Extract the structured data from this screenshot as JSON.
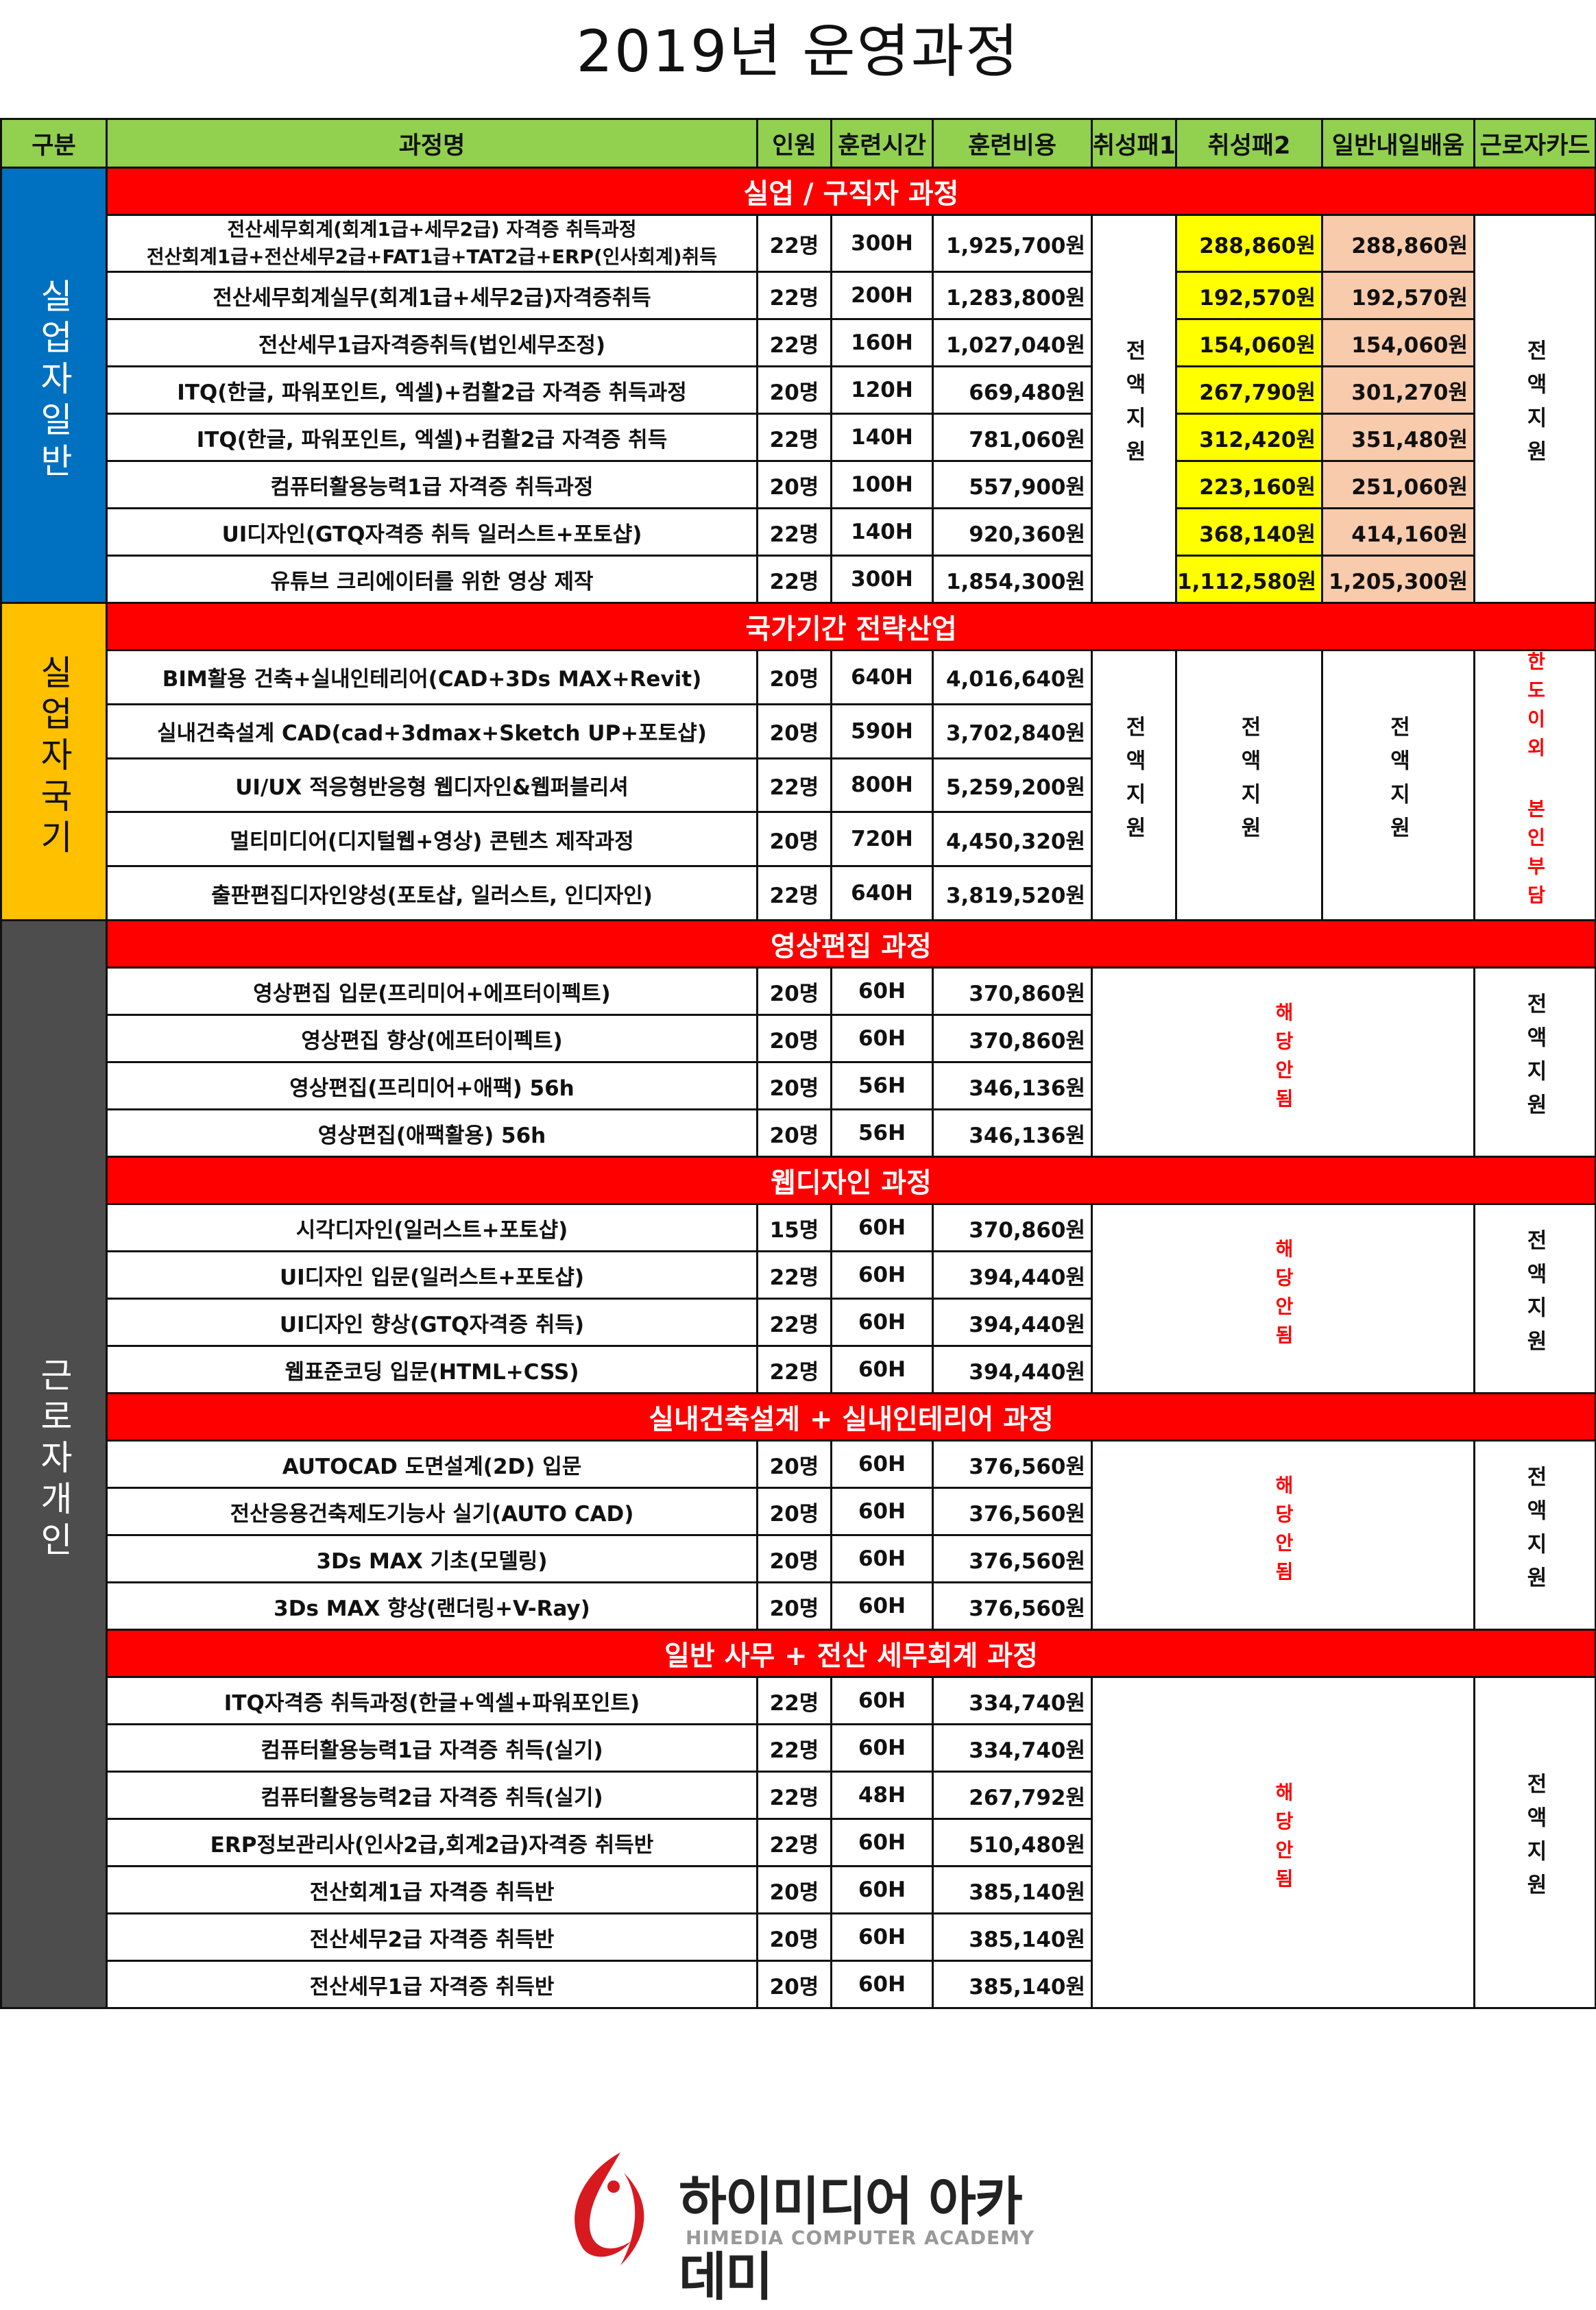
{
  "title": "2019년 운영과정",
  "headers": [
    "구분",
    "과정명",
    "인원",
    "훈련시간",
    "훈련비용",
    "취성패1",
    "취성패2",
    "일반내일배움",
    "근로자카드"
  ],
  "colors": {
    "header": "#92d050",
    "section": "#ff0000",
    "blue": "#0070c0",
    "yellow": "#ffc000",
    "gray": "#4d4d4d",
    "highlight_yellow": "#ffff00",
    "highlight_peach": "#f8cbad"
  },
  "categories": [
    {
      "label": "실업자일반",
      "color": "#0070c0",
      "text_color": "#ffffff"
    },
    {
      "label": "실업자국기",
      "color": "#ffc000",
      "text_color": "#111111"
    },
    {
      "label": "근로자개인",
      "color": "#4d4d4d",
      "text_color": "#ffffff"
    }
  ],
  "sections": [
    {
      "category": 0,
      "title": "실업 / 구직자 과정",
      "type": "A",
      "support1": "전액지원",
      "card": "전액지원",
      "rows": [
        {
          "name": "전산세무회계(회계1급+세무2급) 자격증 취득과정",
          "name2": "전산회계1급+전산세무2급+FAT1급+TAT2급+ERP(인사회계)취득",
          "people": "22명",
          "hours": "300H",
          "cost": "1,925,700원",
          "s2": "288,860원",
          "gen": "288,860원"
        },
        {
          "name": "전산세무회계실무(회계1급+세무2급)자격증취득",
          "people": "22명",
          "hours": "200H",
          "cost": "1,283,800원",
          "s2": "192,570원",
          "gen": "192,570원"
        },
        {
          "name": "전산세무1급자격증취득(법인세무조정)",
          "people": "22명",
          "hours": "160H",
          "cost": "1,027,040원",
          "s2": "154,060원",
          "gen": "154,060원"
        },
        {
          "name": "ITQ(한글, 파워포인트, 엑셀)+컴활2급 자격증 취득과정",
          "people": "20명",
          "hours": "120H",
          "cost": "669,480원",
          "s2": "267,790원",
          "gen": "301,270원"
        },
        {
          "name": "ITQ(한글, 파워포인트, 엑셀)+컴활2급 자격증 취득",
          "people": "22명",
          "hours": "140H",
          "cost": "781,060원",
          "s2": "312,420원",
          "gen": "351,480원"
        },
        {
          "name": "컴퓨터활용능력1급 자격증 취득과정",
          "people": "20명",
          "hours": "100H",
          "cost": "557,900원",
          "s2": "223,160원",
          "gen": "251,060원"
        },
        {
          "name": "UI디자인(GTQ자격증 취득 일러스트+포토샵)",
          "people": "22명",
          "hours": "140H",
          "cost": "920,360원",
          "s2": "368,140원",
          "gen": "414,160원"
        },
        {
          "name": "유튜브 크리에이터를 위한 영상 제작",
          "people": "22명",
          "hours": "300H",
          "cost": "1,854,300원",
          "s2": "1,112,580원",
          "gen": "1,205,300원"
        }
      ]
    },
    {
      "category": 1,
      "title": "국가기간 전략산업",
      "type": "B",
      "support1": "전액지원",
      "support2": "전액지원",
      "gen": "전액지원",
      "card": "한도이외 본인부담",
      "rows": [
        {
          "name": "BIM활용 건축+실내인테리어(CAD+3Ds MAX+Revit)",
          "people": "20명",
          "hours": "640H",
          "cost": "4,016,640원"
        },
        {
          "name": "실내건축설계 CAD(cad+3dmax+Sketch UP+포토샵)",
          "people": "20명",
          "hours": "590H",
          "cost": "3,702,840원"
        },
        {
          "name": "UI/UX 적응형반응형 웹디자인&웹퍼블리셔",
          "people": "22명",
          "hours": "800H",
          "cost": "5,259,200원"
        },
        {
          "name": "멀티미디어(디지털웹+영상) 콘텐츠 제작과정",
          "people": "20명",
          "hours": "720H",
          "cost": "4,450,320원"
        },
        {
          "name": "출판편집디자인양성(포토샵, 일러스트, 인디자인)",
          "people": "22명",
          "hours": "640H",
          "cost": "3,819,520원"
        }
      ]
    },
    {
      "category": 2,
      "title": "영상편집 과정",
      "type": "C",
      "na": "해당안됨",
      "card": "전액지원",
      "rows": [
        {
          "name": "영상편집 입문(프리미어+에프터이펙트)",
          "people": "20명",
          "hours": "60H",
          "cost": "370,860원"
        },
        {
          "name": "영상편집 향상(에프터이펙트)",
          "people": "20명",
          "hours": "60H",
          "cost": "370,860원"
        },
        {
          "name": "영상편집(프리미어+애팩) 56h",
          "people": "20명",
          "hours": "56H",
          "cost": "346,136원"
        },
        {
          "name": "영상편집(애팩활용) 56h",
          "people": "20명",
          "hours": "56H",
          "cost": "346,136원"
        }
      ]
    },
    {
      "category": 2,
      "title": "웹디자인 과정",
      "type": "C",
      "na": "해당안됨",
      "card": "전액지원",
      "rows": [
        {
          "name": "시각디자인(일러스트+포토샵)",
          "people": "15명",
          "hours": "60H",
          "cost": "370,860원"
        },
        {
          "name": "UI디자인 입문(일러스트+포토샵)",
          "people": "22명",
          "hours": "60H",
          "cost": "394,440원"
        },
        {
          "name": "UI디자인 향상(GTQ자격증 취득)",
          "people": "22명",
          "hours": "60H",
          "cost": "394,440원"
        },
        {
          "name": "웹표준코딩 입문(HTML+CSS)",
          "people": "22명",
          "hours": "60H",
          "cost": "394,440원"
        }
      ]
    },
    {
      "category": 2,
      "title": "실내건축설계 + 실내인테리어 과정",
      "type": "C",
      "na": "해당안됨",
      "card": "전액지원",
      "rows": [
        {
          "name": "AUTOCAD 도면설계(2D) 입문",
          "people": "20명",
          "hours": "60H",
          "cost": "376,560원"
        },
        {
          "name": "전산응용건축제도기능사 실기(AUTO CAD)",
          "people": "20명",
          "hours": "60H",
          "cost": "376,560원"
        },
        {
          "name": "3Ds MAX 기초(모델링)",
          "people": "20명",
          "hours": "60H",
          "cost": "376,560원"
        },
        {
          "name": "3Ds MAX 향상(랜더링+V-Ray)",
          "people": "20명",
          "hours": "60H",
          "cost": "376,560원"
        }
      ]
    },
    {
      "category": 2,
      "title": "일반 사무 + 전산 세무회계 과정",
      "type": "C",
      "na": "해당안됨",
      "card": "전액지원",
      "rows": [
        {
          "name": "ITQ자격증 취득과정(한글+엑셀+파워포인트)",
          "people": "22명",
          "hours": "60H",
          "cost": "334,740원"
        },
        {
          "name": "컴퓨터활용능력1급 자격증 취득(실기)",
          "people": "22명",
          "hours": "60H",
          "cost": "334,740원"
        },
        {
          "name": "컴퓨터활용능력2급 자격증 취득(실기)",
          "people": "22명",
          "hours": "48H",
          "cost": "267,792원"
        },
        {
          "name": "ERP정보관리사(인사2급,회계2급)자격증 취득반",
          "people": "22명",
          "hours": "60H",
          "cost": "510,480원"
        },
        {
          "name": "전산회계1급 자격증 취득반",
          "people": "20명",
          "hours": "60H",
          "cost": "385,140원"
        },
        {
          "name": "전산세무2급 자격증 취득반",
          "people": "20명",
          "hours": "60H",
          "cost": "385,140원"
        },
        {
          "name": "전산세무1급 자격증 취득반",
          "people": "20명",
          "hours": "60H",
          "cost": "385,140원"
        }
      ]
    }
  ],
  "logo": {
    "name": "하이미디어 아카데미",
    "subtitle": "HIMEDIA COMPUTER ACADEMY"
  }
}
